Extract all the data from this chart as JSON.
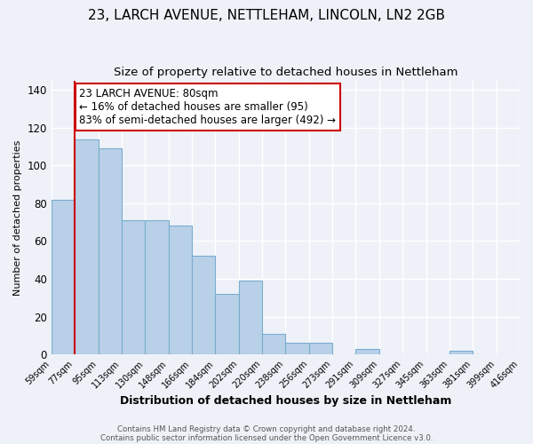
{
  "title": "23, LARCH AVENUE, NETTLEHAM, LINCOLN, LN2 2GB",
  "subtitle": "Size of property relative to detached houses in Nettleham",
  "xlabel": "Distribution of detached houses by size in Nettleham",
  "ylabel": "Number of detached properties",
  "bar_values": [
    82,
    114,
    109,
    71,
    71,
    68,
    52,
    32,
    39,
    11,
    6,
    6,
    0,
    3,
    0,
    0,
    0,
    2,
    0,
    0
  ],
  "bin_labels": [
    "59sqm",
    "77sqm",
    "95sqm",
    "113sqm",
    "130sqm",
    "148sqm",
    "166sqm",
    "184sqm",
    "202sqm",
    "220sqm",
    "238sqm",
    "256sqm",
    "273sqm",
    "291sqm",
    "309sqm",
    "327sqm",
    "345sqm",
    "363sqm",
    "381sqm",
    "399sqm",
    "416sqm"
  ],
  "bar_color": "#b8d0e8",
  "bar_edge_color": "#7aadcf",
  "marker_color": "#cc0000",
  "annotation_title": "23 LARCH AVENUE: 80sqm",
  "annotation_line1": "← 16% of detached houses are smaller (95)",
  "annotation_line2": "83% of semi-detached houses are larger (492) →",
  "annotation_box_color": "#ffffff",
  "annotation_box_edge": "#cc0000",
  "ylim": [
    0,
    145
  ],
  "yticks": [
    0,
    20,
    40,
    60,
    80,
    100,
    120,
    140
  ],
  "footer1": "Contains HM Land Registry data © Crown copyright and database right 2024.",
  "footer2": "Contains public sector information licensed under the Open Government Licence v3.0.",
  "background_color": "#eef2f8",
  "grid_color": "#ffffff",
  "title_fontsize": 11,
  "subtitle_fontsize": 9.5,
  "ylabel_fontsize": 8,
  "xlabel_fontsize": 9
}
